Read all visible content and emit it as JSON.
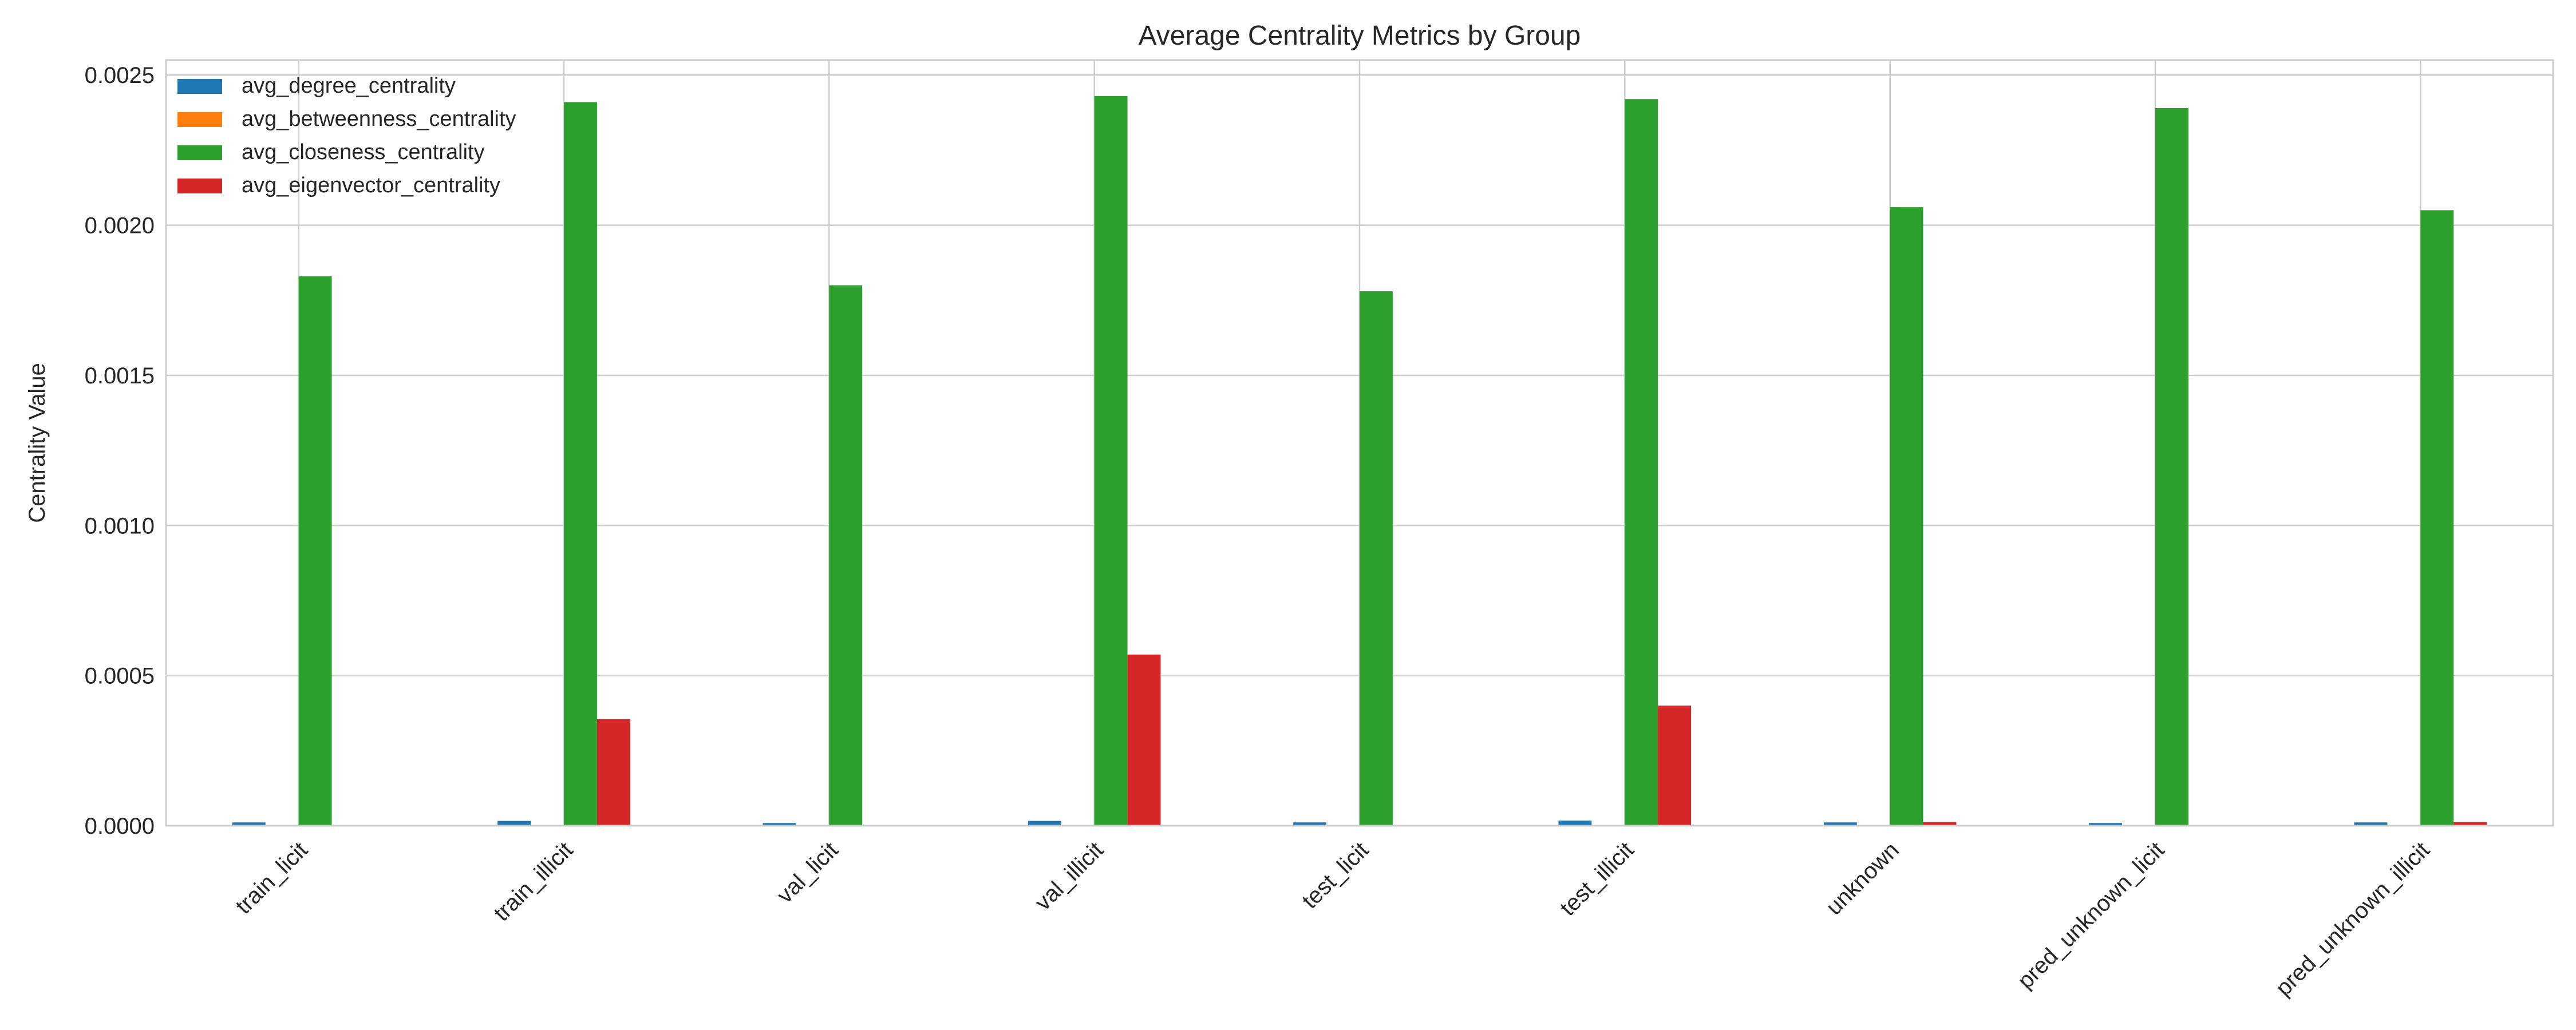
{
  "chart_data": {
    "type": "bar",
    "title": "Average Centrality Metrics by Group",
    "xlabel": "",
    "ylabel": "Centrality Value",
    "ylim": [
      0,
      0.00255
    ],
    "yticks": [
      "0.0000",
      "0.0005",
      "0.0010",
      "0.0015",
      "0.0020",
      "0.0025"
    ],
    "categories": [
      "train_licit",
      "train_illicit",
      "val_licit",
      "val_illicit",
      "test_licit",
      "test_illicit",
      "unknown",
      "pred_unknown_licit",
      "pred_unknown_illicit"
    ],
    "series": [
      {
        "name": "avg_degree_centrality",
        "color": "#1f77b4",
        "values": [
          1.1e-05,
          1.6e-05,
          9e-06,
          1.6e-05,
          1.1e-05,
          1.7e-05,
          1.1e-05,
          9e-06,
          1.1e-05
        ]
      },
      {
        "name": "avg_betweenness_centrality",
        "color": "#ff7f0e",
        "values": [
          1e-06,
          1e-06,
          1e-06,
          1e-06,
          1e-06,
          1e-06,
          1e-06,
          1e-06,
          1e-06
        ]
      },
      {
        "name": "avg_closeness_centrality",
        "color": "#2ca02c",
        "values": [
          0.00183,
          0.00241,
          0.0018,
          0.00243,
          0.00178,
          0.00242,
          0.00206,
          0.00239,
          0.00205
        ]
      },
      {
        "name": "avg_eigenvector_centrality",
        "color": "#d62728",
        "values": [
          2e-06,
          0.000355,
          2e-06,
          0.00057,
          2e-06,
          0.0004,
          1.2e-05,
          2e-06,
          1.2e-05
        ]
      }
    ],
    "grid": true,
    "legend_position": "top-left",
    "colors": {
      "background": "#ffffff",
      "grid": "#cccccc",
      "axes": "#cccccc",
      "text": "#262626"
    }
  }
}
